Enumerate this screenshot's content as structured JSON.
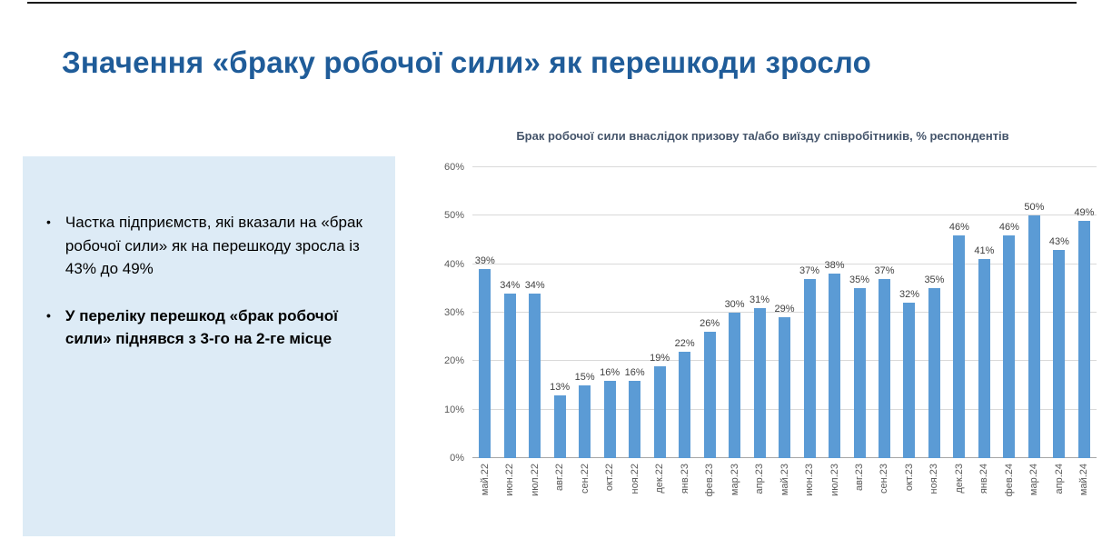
{
  "page": {
    "title": "Значення «браку робочої сили» як перешкоди зросло"
  },
  "panel": {
    "bullets": [
      {
        "text": "Частка підприємств, які вказали на «брак робочої сили» як на перешкоду зросла із 43% до 49%",
        "bold": false
      },
      {
        "text": "У переліку перешкод «брак робочої сили» піднявся з 3-го на 2-ге місце",
        "bold": true
      }
    ]
  },
  "chart_data": {
    "type": "bar",
    "title": "Брак робочої сили внаслідок призову та/або виїзду співробітників, % респондентів",
    "categories": [
      "май.22",
      "июн.22",
      "июл.22",
      "авг.22",
      "сен.22",
      "окт.22",
      "ноя.22",
      "дек.22",
      "янв.23",
      "фев.23",
      "мар.23",
      "апр.23",
      "май.23",
      "июн.23",
      "июл.23",
      "авг.23",
      "сен.23",
      "окт.23",
      "ноя.23",
      "дек.23",
      "янв.24",
      "фев.24",
      "мар.24",
      "апр.24",
      "май.24"
    ],
    "values": [
      39,
      34,
      34,
      13,
      15,
      16,
      16,
      19,
      22,
      26,
      30,
      31,
      29,
      37,
      38,
      35,
      37,
      32,
      35,
      46,
      41,
      46,
      50,
      43,
      49
    ],
    "data_label_suffix": "%",
    "ylim": [
      0,
      60
    ],
    "ytick_step": 10,
    "ytick_labels": [
      "0%",
      "10%",
      "20%",
      "30%",
      "40%",
      "50%",
      "60%"
    ],
    "grid": true,
    "legend": "none",
    "xlabel": "",
    "ylabel": ""
  },
  "colors": {
    "title_text": "#1F5C99",
    "panel_bg": "#DDEBF6",
    "bar": "#5B9BD5",
    "chart_title_text": "#44546A",
    "axis_text": "#595959",
    "data_label_text": "#404040",
    "gridline": "#D9D9D9",
    "axis_line": "#A6A6A6"
  }
}
